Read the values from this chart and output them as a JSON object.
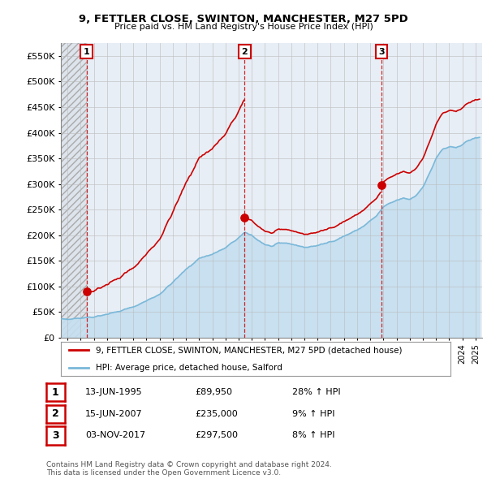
{
  "title": "9, FETTLER CLOSE, SWINTON, MANCHESTER, M27 5PD",
  "subtitle": "Price paid vs. HM Land Registry's House Price Index (HPI)",
  "xlim": [
    1993.5,
    2025.5
  ],
  "ylim": [
    0,
    575000
  ],
  "yticks": [
    0,
    50000,
    100000,
    150000,
    200000,
    250000,
    300000,
    350000,
    400000,
    450000,
    500000,
    550000
  ],
  "purchases": [
    {
      "date_num": 1995.45,
      "price": 89950,
      "label": "1"
    },
    {
      "date_num": 2007.46,
      "price": 235000,
      "label": "2"
    },
    {
      "date_num": 2017.84,
      "price": 297500,
      "label": "3"
    }
  ],
  "hpi_color": "#7ab8d9",
  "hpi_fill_color": "#c5dff0",
  "price_color": "#cc0000",
  "grid_color": "#bbbbbb",
  "bg_color": "#e8eef5",
  "hatch_bg": "#dde4ec",
  "legend_label_price": "9, FETTLER CLOSE, SWINTON, MANCHESTER, M27 5PD (detached house)",
  "legend_label_hpi": "HPI: Average price, detached house, Salford",
  "table_rows": [
    [
      "1",
      "13-JUN-1995",
      "£89,950",
      "28% ↑ HPI"
    ],
    [
      "2",
      "15-JUN-2007",
      "£235,000",
      "9% ↑ HPI"
    ],
    [
      "3",
      "03-NOV-2017",
      "£297,500",
      "8% ↑ HPI"
    ]
  ],
  "footnote": "Contains HM Land Registry data © Crown copyright and database right 2024.\nThis data is licensed under the Open Government Licence v3.0."
}
